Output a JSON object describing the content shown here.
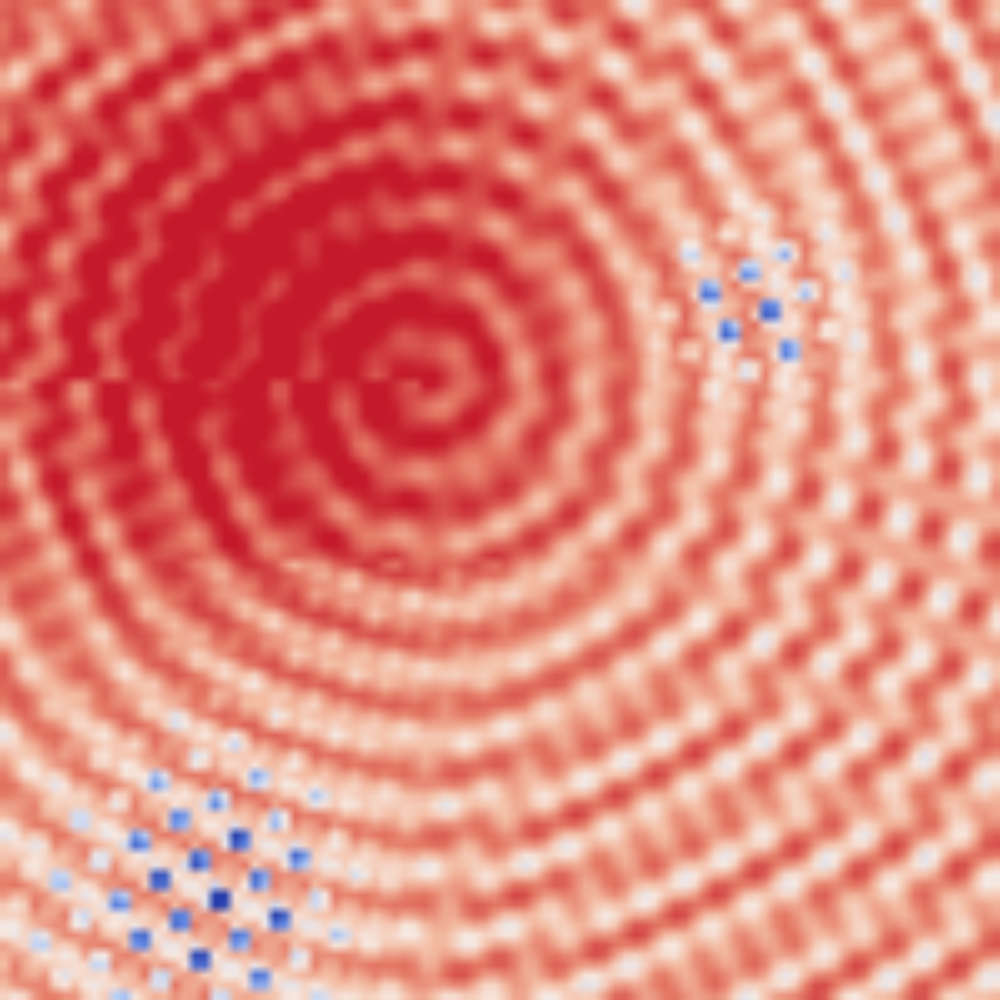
{
  "image": {
    "kind": "heatmap-interference-field",
    "colormap": "RdBu_r",
    "palette": {
      "deep_red": "#c6192b",
      "red": "#d6604d",
      "salmon": "#f4a582",
      "light": "#fbe3d6",
      "pale_blue": "#d1e5f0",
      "blue": "#6a92e8",
      "deep_blue": "#2546b8"
    },
    "has_labels": false,
    "has_axes": false
  }
}
